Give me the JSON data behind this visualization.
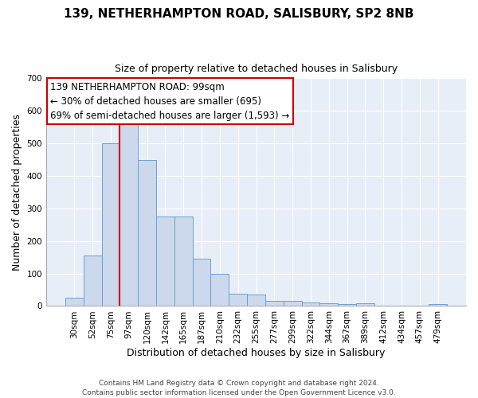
{
  "title": "139, NETHERHAMPTON ROAD, SALISBURY, SP2 8NB",
  "subtitle": "Size of property relative to detached houses in Salisbury",
  "xlabel": "Distribution of detached houses by size in Salisbury",
  "ylabel": "Number of detached properties",
  "bar_labels": [
    "30sqm",
    "52sqm",
    "75sqm",
    "97sqm",
    "120sqm",
    "142sqm",
    "165sqm",
    "187sqm",
    "210sqm",
    "232sqm",
    "255sqm",
    "277sqm",
    "299sqm",
    "322sqm",
    "344sqm",
    "367sqm",
    "389sqm",
    "412sqm",
    "434sqm",
    "457sqm",
    "479sqm"
  ],
  "bar_heights": [
    25,
    155,
    500,
    575,
    450,
    275,
    275,
    145,
    100,
    38,
    35,
    15,
    15,
    10,
    8,
    5,
    8,
    2,
    2,
    2,
    5
  ],
  "bar_color": "#ccd9ec",
  "bar_edge_color": "#6b9fd4",
  "vline_color": "#cc0000",
  "vline_x_index": 3,
  "ylim": [
    0,
    700
  ],
  "yticks": [
    0,
    100,
    200,
    300,
    400,
    500,
    600,
    700
  ],
  "annotation_title": "139 NETHERHAMPTON ROAD: 99sqm",
  "annotation_line1": "← 30% of detached houses are smaller (695)",
  "annotation_line2": "69% of semi-detached houses are larger (1,593) →",
  "annotation_box_facecolor": "#ffffff",
  "annotation_box_edgecolor": "#cc0000",
  "footer1": "Contains HM Land Registry data © Crown copyright and database right 2024.",
  "footer2": "Contains public sector information licensed under the Open Government Licence v3.0.",
  "bg_color": "#ffffff",
  "plot_bg_color": "#e8eef8",
  "grid_color": "#ffffff",
  "title_fontsize": 11,
  "subtitle_fontsize": 9,
  "ylabel_fontsize": 9,
  "xlabel_fontsize": 9,
  "tick_fontsize": 7.5,
  "annotation_fontsize": 8.5,
  "footer_fontsize": 6.5
}
